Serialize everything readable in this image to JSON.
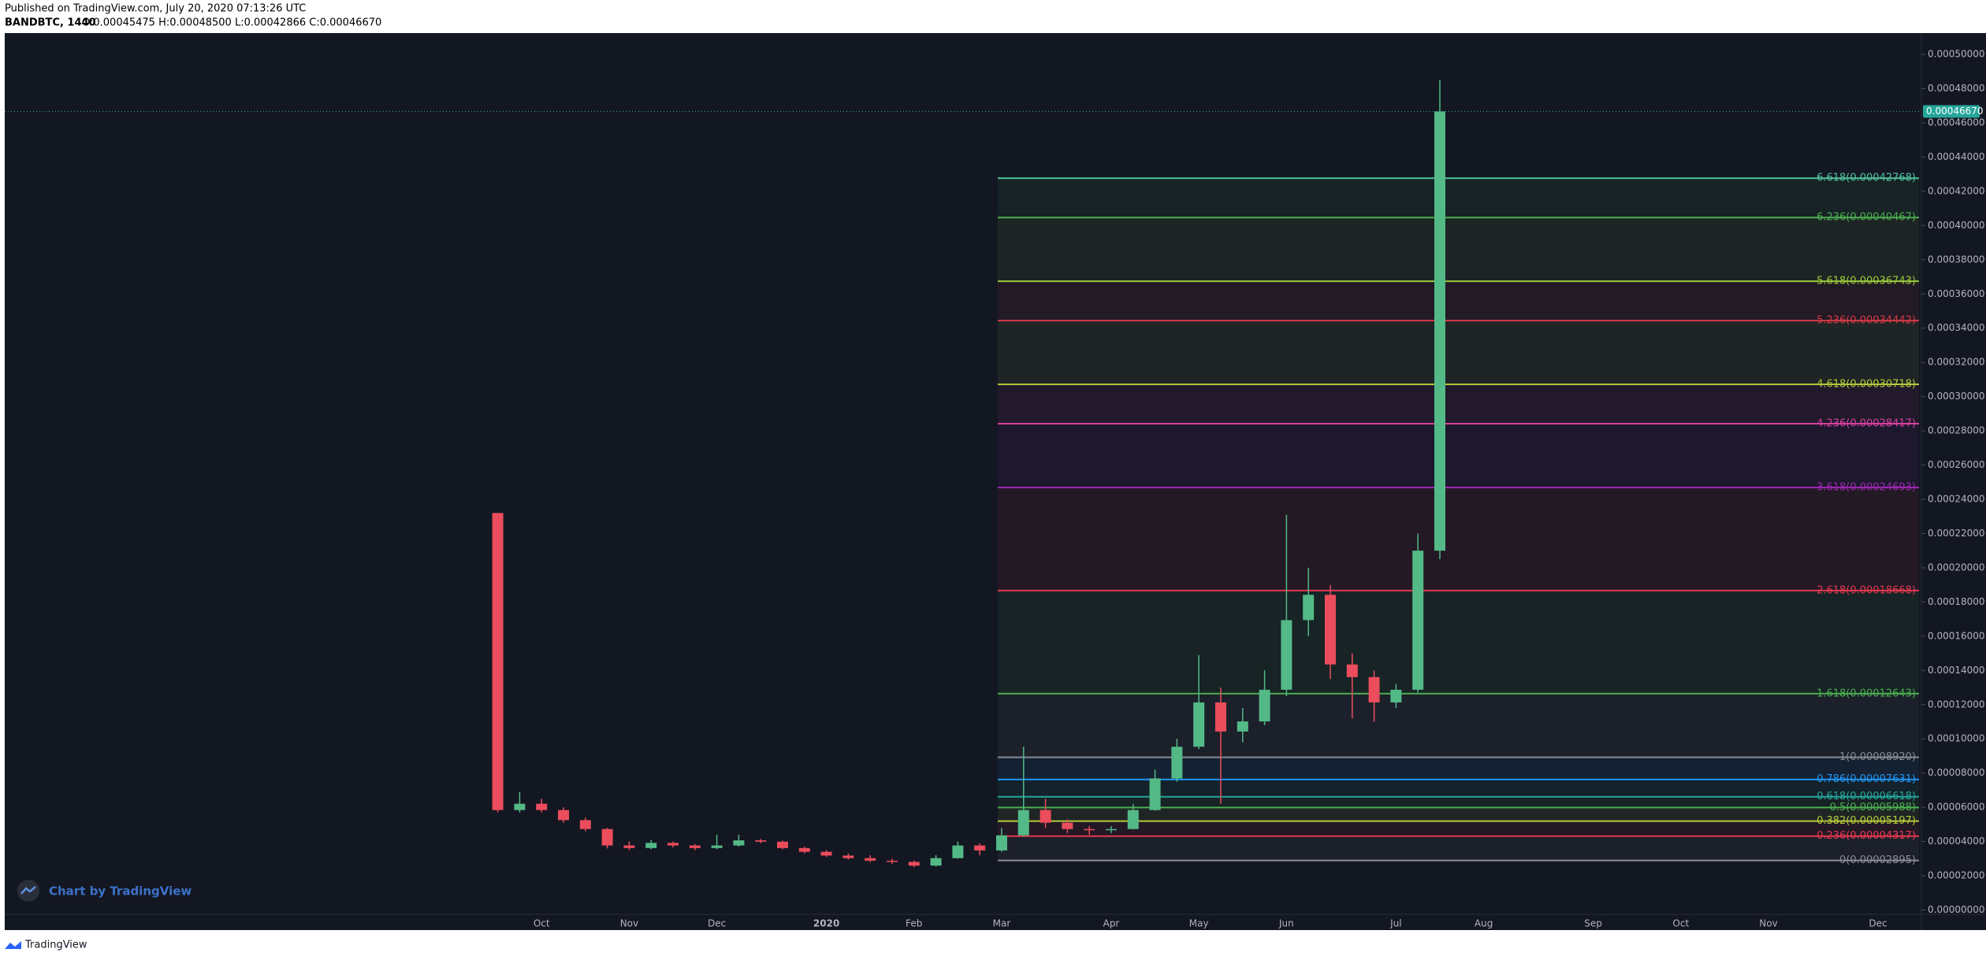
{
  "header": {
    "published": "Published on TradingView.com, July 20, 2020 07:13:26 UTC",
    "symbol": "BANDBTC, 1440",
    "ohlc": "O:0.00045475 H:0.00048500 L:0.00042866 C:0.00046670"
  },
  "watermark": "Chart by TradingView",
  "footer": "TradingView",
  "chart_data": {
    "type": "candlestick",
    "up_color": "#53b987",
    "down_color": "#eb4d5c",
    "categories": [
      null,
      null,
      "Oct",
      null,
      null,
      null,
      "Nov",
      null,
      null,
      null,
      "Dec",
      null,
      null,
      null,
      null,
      "2020",
      null,
      null,
      null,
      "Feb",
      null,
      null,
      null,
      "Mar",
      null,
      null,
      null,
      null,
      "Apr",
      null,
      null,
      null,
      "May",
      null,
      null,
      null,
      "Jun",
      null,
      null,
      null,
      null,
      "Jul",
      null,
      null,
      null,
      "Aug",
      null,
      null,
      null,
      null,
      "Sep",
      null,
      null,
      null,
      "Oct",
      null,
      null,
      null,
      "Nov",
      null,
      null,
      null,
      null,
      "Dec",
      null
    ],
    "open": [
      0.000232,
      5.84e-05,
      6.21e-05,
      5.84e-05,
      5.25e-05,
      4.73e-05,
      3.77e-05,
      3.62e-05,
      3.92e-05,
      3.77e-05,
      3.62e-05,
      3.77e-05,
      4.07e-05,
      3.99e-05,
      3.62e-05,
      3.4e-05,
      3.18e-05,
      3.03e-05,
      2.88e-05,
      2.81e-05,
      2.59e-05,
      3.03e-05,
      3.77e-05,
      3.48e-05,
      4.36e-05,
      5.84e-05,
      5.1e-05,
      4.73e-05,
      4.66e-05,
      4.73e-05,
      5.84e-05,
      7.69e-05,
      9.54e-05,
      0.0001213,
      0.0001043,
      0.0001102,
      0.0001287,
      0.0001694,
      0.0001842,
      0.0001435,
      0.0001361,
      0.0001213,
      0.0001287,
      0.00021,
      null,
      null,
      null,
      null,
      null,
      null,
      null,
      null,
      null,
      null,
      null,
      null,
      null,
      null,
      null,
      null,
      null,
      null,
      null,
      null,
      null
    ],
    "high": [
      0.000232,
      6.9e-05,
      6.5e-05,
      6e-05,
      5.4e-05,
      4.8e-05,
      4e-05,
      4.1e-05,
      4e-05,
      3.85e-05,
      4.4e-05,
      4.4e-05,
      4.15e-05,
      4.05e-05,
      3.7e-05,
      3.5e-05,
      3.3e-05,
      3.2e-05,
      3e-05,
      2.9e-05,
      3.2e-05,
      4e-05,
      3.9e-05,
      4.8e-05,
      9.54e-05,
      6.5e-05,
      5.3e-05,
      4.9e-05,
      4.9e-05,
      6.2e-05,
      8.2e-05,
      0.0001,
      0.000149,
      0.00013,
      0.000118,
      0.00014,
      0.000231,
      0.0002,
      0.00019,
      0.00015,
      0.00014,
      0.000132,
      0.00022,
      0.000485,
      null,
      null,
      null,
      null,
      null,
      null,
      null,
      null,
      null,
      null,
      null,
      null,
      null,
      null,
      null,
      null,
      null,
      null,
      null,
      null,
      null
    ],
    "low": [
      5.7e-05,
      5.7e-05,
      5.7e-05,
      5.1e-05,
      4.6e-05,
      3.6e-05,
      3.5e-05,
      3.55e-05,
      3.65e-05,
      3.5e-05,
      3.55e-05,
      3.7e-05,
      3.9e-05,
      3.55e-05,
      3.3e-05,
      3.1e-05,
      2.95e-05,
      2.8e-05,
      2.7e-05,
      2.5e-05,
      2.55e-05,
      3e-05,
      3.2e-05,
      3.4e-05,
      4.3e-05,
      4.8e-05,
      4.5e-05,
      4.4e-05,
      4.5e-05,
      4.7e-05,
      5.8e-05,
      7.5e-05,
      9.4e-05,
      6.21e-05,
      9.8e-05,
      0.000108,
      0.000125,
      0.00016,
      0.000135,
      0.000112,
      0.00011,
      0.000118,
      0.000127,
      0.000205,
      null,
      null,
      null,
      null,
      null,
      null,
      null,
      null,
      null,
      null,
      null,
      null,
      null,
      null,
      null,
      null,
      null,
      null,
      null,
      null,
      null
    ],
    "close": [
      5.84e-05,
      6.21e-05,
      5.84e-05,
      5.25e-05,
      4.73e-05,
      3.77e-05,
      3.62e-05,
      3.92e-05,
      3.77e-05,
      3.62e-05,
      3.77e-05,
      4.07e-05,
      3.99e-05,
      3.62e-05,
      3.4e-05,
      3.18e-05,
      3.03e-05,
      2.88e-05,
      2.81e-05,
      2.59e-05,
      3.03e-05,
      3.77e-05,
      3.48e-05,
      4.36e-05,
      5.84e-05,
      5.1e-05,
      4.73e-05,
      4.66e-05,
      4.73e-05,
      5.84e-05,
      7.69e-05,
      9.54e-05,
      0.0001213,
      0.0001043,
      0.0001102,
      0.0001287,
      0.0001694,
      0.0001842,
      0.0001435,
      0.0001361,
      0.0001213,
      0.0001287,
      0.00021,
      0.0004667,
      null,
      null,
      null,
      null,
      null,
      null,
      null,
      null,
      null,
      null,
      null,
      null,
      null,
      null,
      null,
      null,
      null,
      null,
      null,
      null,
      null
    ],
    "ylim": [
      0,
      0.0005
    ],
    "yticks": [
      {
        "value": 0,
        "label": "0.00000000"
      },
      {
        "value": 2e-05,
        "label": "0.00002000"
      },
      {
        "value": 4e-05,
        "label": "0.00004000"
      },
      {
        "value": 6e-05,
        "label": "0.00006000"
      },
      {
        "value": 8e-05,
        "label": "0.00008000"
      },
      {
        "value": 0.0001,
        "label": "0.00010000"
      },
      {
        "value": 0.00012,
        "label": "0.00012000"
      },
      {
        "value": 0.00014,
        "label": "0.00014000"
      },
      {
        "value": 0.00016,
        "label": "0.00016000"
      },
      {
        "value": 0.00018,
        "label": "0.00018000"
      },
      {
        "value": 0.0002,
        "label": "0.00020000"
      },
      {
        "value": 0.00022,
        "label": "0.00022000"
      },
      {
        "value": 0.00024,
        "label": "0.00024000"
      },
      {
        "value": 0.00026,
        "label": "0.00026000"
      },
      {
        "value": 0.00028,
        "label": "0.00028000"
      },
      {
        "value": 0.0003,
        "label": "0.00030000"
      },
      {
        "value": 0.00032,
        "label": "0.00032000"
      },
      {
        "value": 0.00034,
        "label": "0.00034000"
      },
      {
        "value": 0.00036,
        "label": "0.00036000"
      },
      {
        "value": 0.00038,
        "label": "0.00038000"
      },
      {
        "value": 0.0004,
        "label": "0.00040000"
      },
      {
        "value": 0.00042,
        "label": "0.00042000"
      },
      {
        "value": 0.00044,
        "label": "0.00044000"
      },
      {
        "value": 0.00046,
        "label": "0.00046000"
      },
      {
        "value": 0.00048,
        "label": "0.00048000"
      },
      {
        "value": 0.0005,
        "label": "0.00050000"
      }
    ],
    "grid": false,
    "last_price": {
      "value": 0.0004667,
      "label": "0.00046670",
      "color": "#26a69a"
    },
    "fib_levels": [
      {
        "value": 0.00042768,
        "label": "6.618(0.00042768)",
        "color": "#4fc39a"
      },
      {
        "value": 0.00040467,
        "label": "6.236(0.00040467)",
        "color": "#4caf50"
      },
      {
        "value": 0.00036743,
        "label": "5.618(0.00036743)",
        "color": "#9cc83a"
      },
      {
        "value": 0.00034442,
        "label": "5.236(0.00034442)",
        "color": "#d63a45"
      },
      {
        "value": 0.00030718,
        "label": "4.618(0.00030718)",
        "color": "#b0c83a"
      },
      {
        "value": 0.00028417,
        "label": "4.236(0.00028417)",
        "color": "#d6409f"
      },
      {
        "value": 0.00024693,
        "label": "3.618(0.00024693)",
        "color": "#9c27b0"
      },
      {
        "value": 0.00018668,
        "label": "2.618(0.00018668)",
        "color": "#e53950"
      },
      {
        "value": 0.00012643,
        "label": "1.618(0.00012643)",
        "color": "#4caf50"
      },
      {
        "value": 8.92e-05,
        "label": "1(0.00008920)",
        "color": "#8a8d96"
      },
      {
        "value": 7.631e-05,
        "label": "0.786(0.00007631)",
        "color": "#2196f3"
      },
      {
        "value": 6.618e-05,
        "label": "0.618(0.00006618)",
        "color": "#26a69a"
      },
      {
        "value": 5.988e-05,
        "label": "0.5(0.00005988)",
        "color": "#4caf50"
      },
      {
        "value": 5.197e-05,
        "label": "0.382(0.00005197)",
        "color": "#b5c83a"
      },
      {
        "value": 4.317e-05,
        "label": "0.236(0.00004317)",
        "color": "#e53950"
      },
      {
        "value": 2.895e-05,
        "label": "0(0.00002895)",
        "color": "#8a8d96"
      }
    ]
  }
}
